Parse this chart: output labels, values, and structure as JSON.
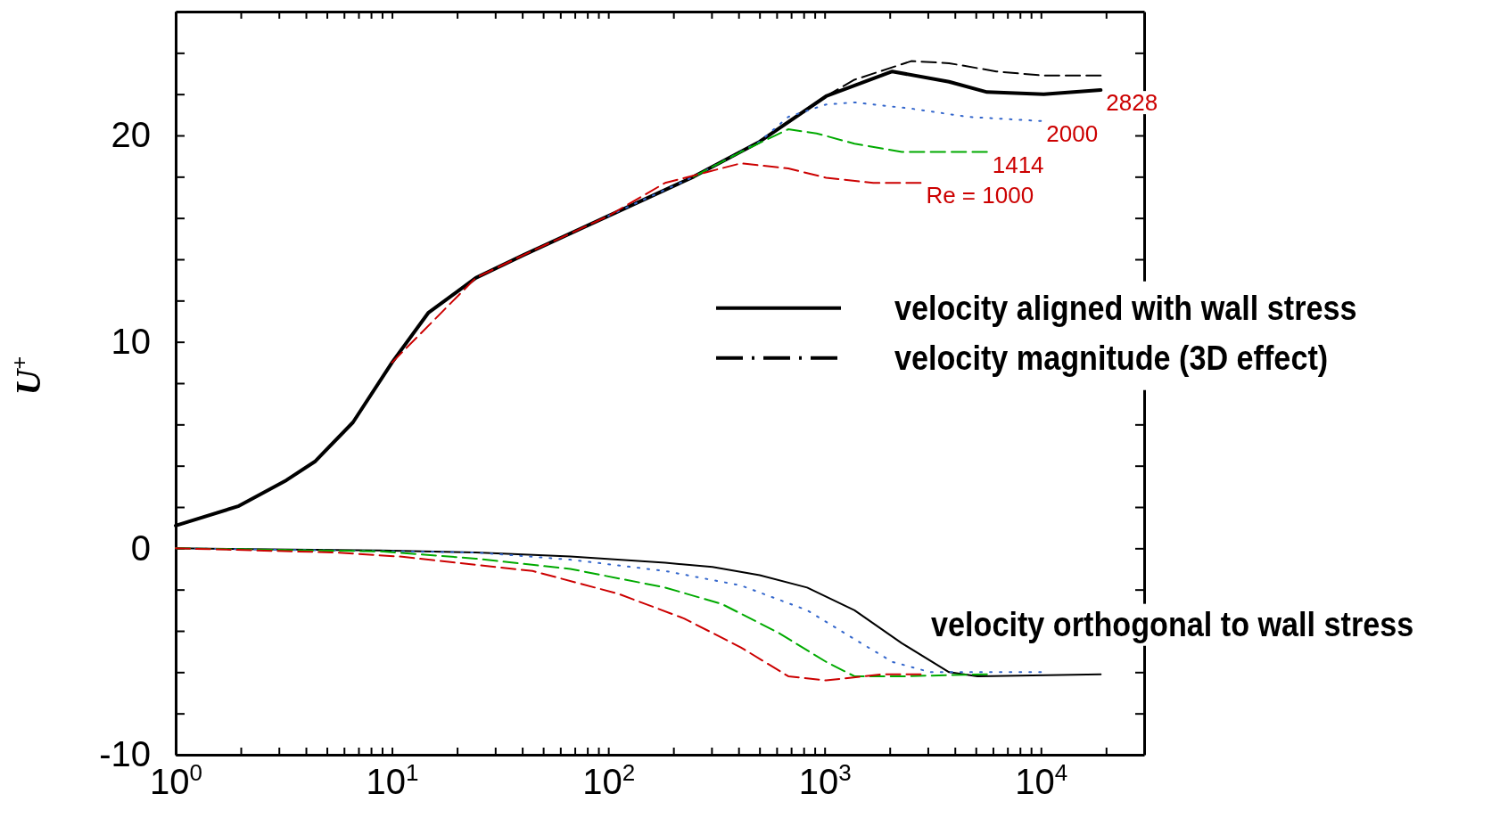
{
  "chart_data": {
    "type": "line",
    "ylabel": "U$^{+}$",
    "log": "x",
    "xlim": [
      1,
      30000
    ],
    "ylim": [
      -10,
      26
    ],
    "xticks": [
      {
        "value": 1,
        "label": "10$^{0}$"
      },
      {
        "value": 2,
        "label": null
      },
      {
        "value": 3,
        "label": null
      },
      {
        "value": 4,
        "label": null
      },
      {
        "value": 5,
        "label": null
      },
      {
        "value": 6,
        "label": null
      },
      {
        "value": 7,
        "label": null
      },
      {
        "value": 8,
        "label": null
      },
      {
        "value": 9,
        "label": null
      },
      {
        "value": 10,
        "label": "10$^{1}$"
      },
      {
        "value": 20,
        "label": null
      },
      {
        "value": 30,
        "label": null
      },
      {
        "value": 40,
        "label": null
      },
      {
        "value": 50,
        "label": null
      },
      {
        "value": 60,
        "label": null
      },
      {
        "value": 70,
        "label": null
      },
      {
        "value": 80,
        "label": null
      },
      {
        "value": 90,
        "label": null
      },
      {
        "value": 100,
        "label": "10$^{2}$"
      },
      {
        "value": 200,
        "label": null
      },
      {
        "value": 300,
        "label": null
      },
      {
        "value": 400,
        "label": null
      },
      {
        "value": 500,
        "label": null
      },
      {
        "value": 600,
        "label": null
      },
      {
        "value": 700,
        "label": null
      },
      {
        "value": 800,
        "label": null
      },
      {
        "value": 900,
        "label": null
      },
      {
        "value": 1000,
        "label": "10$^{3}$"
      },
      {
        "value": 2000,
        "label": null
      },
      {
        "value": 3000,
        "label": null
      },
      {
        "value": 4000,
        "label": null
      },
      {
        "value": 5000,
        "label": null
      },
      {
        "value": 6000,
        "label": null
      },
      {
        "value": 7000,
        "label": null
      },
      {
        "value": 8000,
        "label": null
      },
      {
        "value": 9000,
        "label": null
      },
      {
        "value": 10000,
        "label": "10$^{4}$"
      },
      {
        "value": 20000,
        "label": null
      }
    ],
    "yticks": [
      -10,
      {
        "value": -8,
        "label": null
      },
      {
        "value": -6,
        "label": null
      },
      {
        "value": -4,
        "label": null
      },
      {
        "value": -2,
        "label": null
      },
      0,
      {
        "value": 2,
        "label": null
      },
      {
        "value": 4,
        "label": null
      },
      {
        "value": 6,
        "label": null
      },
      {
        "value": 8,
        "label": null
      },
      10,
      {
        "value": 12,
        "label": null
      },
      {
        "value": 14,
        "label": null
      },
      {
        "value": 16,
        "label": null
      },
      {
        "value": 18,
        "label": null
      },
      20,
      {
        "value": 22,
        "label": null
      },
      {
        "value": 24,
        "label": null
      }
    ],
    "grid": false,
    "legend": "right",
    "marker": "none",
    "series": [
      {
        "name": "velocity aligned with wall stress",
        "color": "#000000",
        "line_style": "solid",
        "x": [
          1,
          1.96,
          3.25,
          4.4,
          6.6,
          10,
          14.7,
          24.4,
          40.4,
          100,
          248,
          501,
          1016,
          2055,
          3760,
          5630,
          10300,
          18900
        ],
        "values": [
          1.1,
          2.05,
          3.3,
          4.2,
          6.1,
          9.0,
          11.4,
          13.1,
          14.2,
          16.1,
          18.0,
          19.7,
          21.9,
          23.1,
          22.6,
          22.1,
          22.0,
          22.2
        ]
      },
      {
        "name": "velocity magnitude (3D effect)",
        "color": "#000000",
        "line_style": "dashed",
        "x": [
          100,
          248,
          501,
          1016,
          1374,
          2513,
          3760,
          6220,
          10300,
          18900
        ],
        "values": [
          16.1,
          18.0,
          19.7,
          21.9,
          22.7,
          23.6,
          23.5,
          23.1,
          22.9,
          22.9
        ]
      },
      {
        "color": "#3366cc",
        "line_style": "dotted",
        "x": [
          100,
          248,
          501,
          679,
          1016,
          1374,
          2513,
          4600,
          10000
        ],
        "values": [
          16.1,
          18.0,
          19.7,
          20.9,
          21.5,
          21.6,
          21.3,
          20.9,
          20.7
        ]
      },
      {
        "color": "#00aa00",
        "line_style": "dashed",
        "x": [
          248,
          410,
          679,
          918,
          1374,
          2275,
          5630
        ],
        "values": [
          18.0,
          19.2,
          20.3,
          20.1,
          19.6,
          19.2,
          19.2
        ]
      },
      {
        "color": "#cc0000",
        "line_style": "dashed",
        "x": [
          10,
          24.4,
          40.4,
          100,
          183,
          410,
          679,
          1016,
          1680,
          2780
        ],
        "values": [
          9.0,
          13.1,
          14.2,
          16.1,
          17.7,
          18.65,
          18.4,
          17.95,
          17.7,
          17.7
        ]
      },
      {
        "color": "#000000",
        "line_style": "solid",
        "x": [
          1,
          8.9,
          24.4,
          66.8,
          183,
          303,
          501,
          830,
          1374,
          2275,
          3760,
          5090,
          18900
        ],
        "values": [
          0,
          -0.1,
          -0.2,
          -0.4,
          -0.7,
          -0.9,
          -1.3,
          -1.9,
          -3.0,
          -4.6,
          -6.0,
          -6.2,
          -6.1
        ]
      },
      {
        "color": "#3366cc",
        "line_style": "dotted",
        "x": [
          1,
          24.4,
          66.8,
          183,
          410,
          830,
          1374,
          2055,
          3076,
          10000
        ],
        "values": [
          0,
          -0.2,
          -0.55,
          -1.1,
          -1.8,
          -3.0,
          -4.4,
          -5.5,
          -6.0,
          -6.0
        ]
      },
      {
        "color": "#00aa00",
        "line_style": "dashed",
        "x": [
          1,
          8.9,
          24.4,
          66.8,
          183,
          335,
          614,
          1016,
          1374,
          2275,
          5630
        ],
        "values": [
          0,
          -0.15,
          -0.5,
          -1.0,
          -1.9,
          -2.7,
          -4.1,
          -5.5,
          -6.2,
          -6.2,
          -6.1
        ]
      },
      {
        "color": "#cc0000",
        "line_style": "dashed",
        "x": [
          1,
          5.4,
          10.9,
          24.4,
          44.7,
          111,
          224,
          410,
          679,
          1016,
          1858,
          2780
        ],
        "values": [
          0,
          -0.2,
          -0.4,
          -0.8,
          -1.1,
          -2.2,
          -3.4,
          -4.8,
          -6.2,
          -6.4,
          -6.1,
          -6.1
        ]
      }
    ],
    "annotations": [
      {
        "text": "2828",
        "x": 18900,
        "y": 22.2
      },
      {
        "text": "2000",
        "x": 10000,
        "y": 20.7
      },
      {
        "text": "1414",
        "x": 5630,
        "y": 19.2
      },
      {
        "text": "Re = 1000",
        "x": 2780,
        "y": 17.7
      },
      "velocity orthogonal to wall stress"
    ]
  }
}
